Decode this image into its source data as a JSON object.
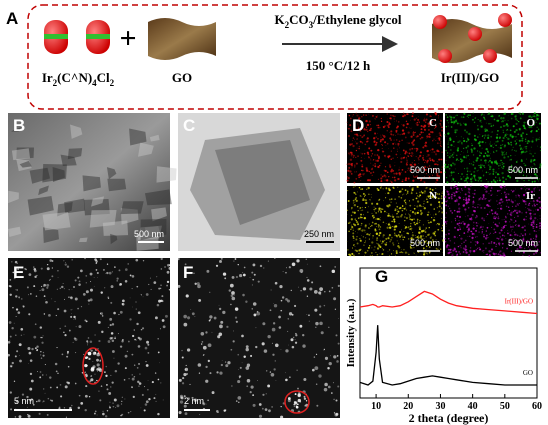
{
  "panel_labels": [
    "A",
    "B",
    "C",
    "D",
    "E",
    "F",
    "G"
  ],
  "scheme": {
    "reactant_formula": [
      "Ir",
      "2",
      "(C^N)",
      "4",
      "Cl",
      "2"
    ],
    "go_label": "GO",
    "reagents": [
      "K",
      "2",
      "CO",
      "3",
      "/Ethylene glycol"
    ],
    "conditions": "150 °C/12 h",
    "product": "Ir(III)/GO"
  },
  "scale_bars": {
    "B": "500 nm",
    "C": "250 nm",
    "E": "5 nm",
    "F": "2 nm"
  },
  "eds_maps": [
    {
      "element": "C",
      "scale_bar": "500 nm",
      "color": "#e01010"
    },
    {
      "element": "O",
      "scale_bar": "500 nm",
      "color": "#10c010"
    },
    {
      "element": "N",
      "scale_bar": "500 nm",
      "color": "#e0e010"
    },
    {
      "element": "Ir",
      "scale_bar": "500 nm",
      "color": "#c010c0"
    }
  ],
  "chart_data": {
    "type": "line",
    "x_label": "2 theta (degree)",
    "y_label": "Intensity (a.u.)",
    "x": [
      5,
      7.5,
      9,
      10,
      10.5,
      11,
      12,
      15,
      17.5,
      20,
      22.5,
      25,
      27.5,
      30,
      32.5,
      35,
      40,
      45,
      50,
      55,
      60
    ],
    "series": [
      {
        "name": "Ir(III)/GO",
        "color": "#ff2020",
        "values": [
          7.0,
          7.1,
          7.2,
          7.1,
          7.0,
          7.0,
          7.1,
          7.0,
          7.1,
          7.4,
          7.8,
          8.2,
          8.0,
          7.6,
          7.3,
          7.1,
          6.9,
          6.8,
          6.7,
          6.6,
          6.5
        ]
      },
      {
        "name": "GO",
        "color": "#000000",
        "values": [
          1.2,
          1.0,
          1.3,
          3.5,
          5.6,
          3.0,
          1.2,
          1.0,
          1.1,
          1.3,
          1.5,
          1.6,
          1.7,
          1.6,
          1.5,
          1.4,
          1.2,
          1.1,
          1.0,
          1.0,
          1.0
        ]
      }
    ],
    "xlim": [
      5,
      60
    ],
    "ylim": [
      0,
      10
    ],
    "xticks": [
      10,
      20,
      30,
      40,
      50,
      60
    ]
  }
}
